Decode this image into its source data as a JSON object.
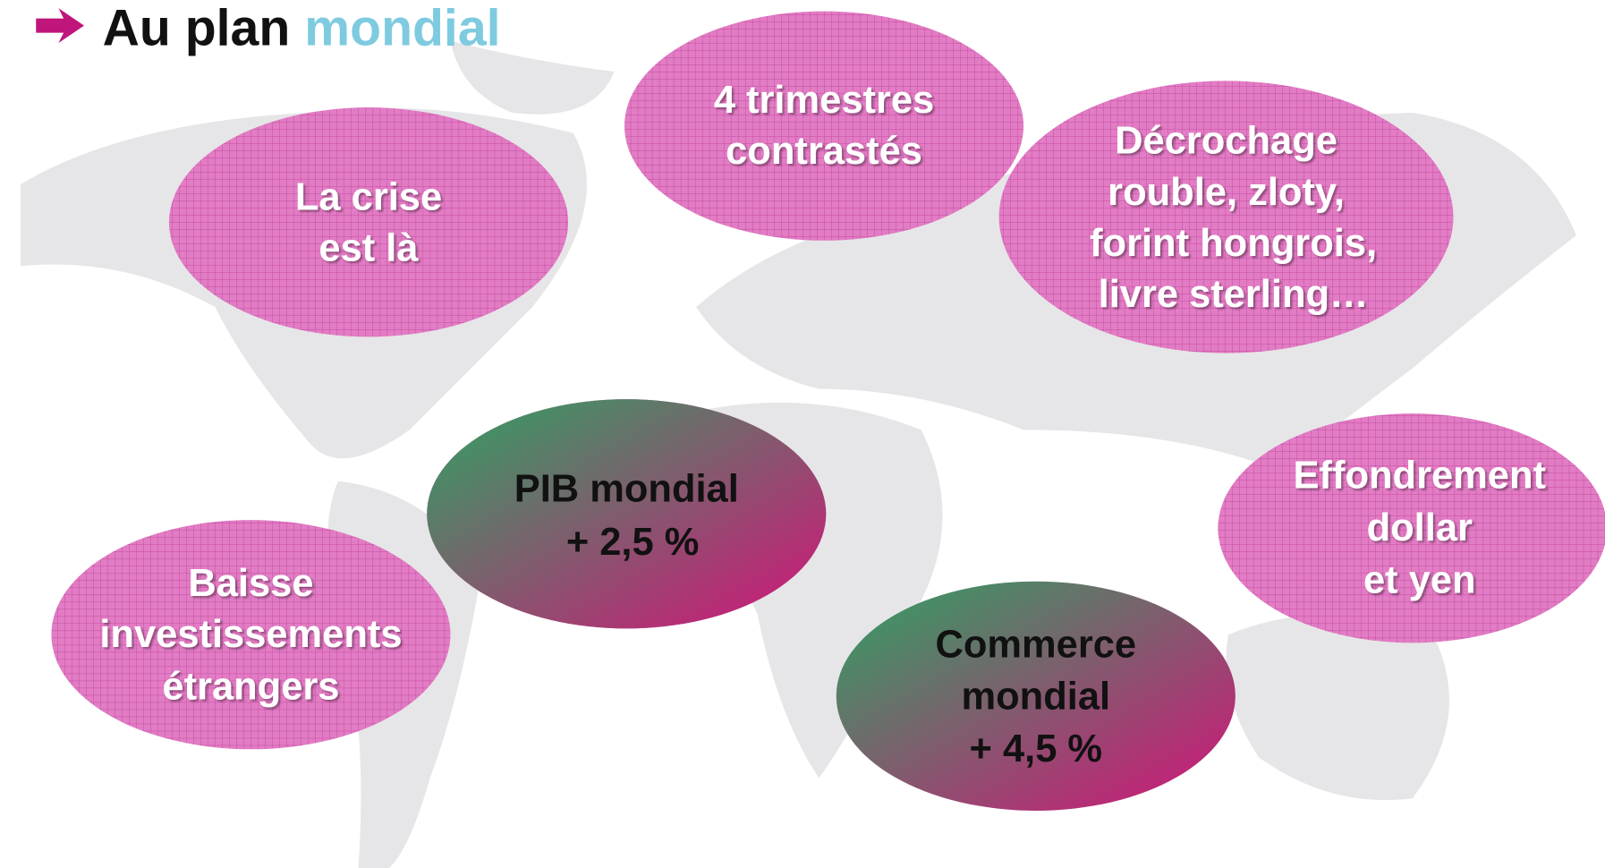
{
  "title": {
    "lead": "Au plan",
    "accent": "mondial"
  },
  "bubbles": [
    {
      "lines": [
        "La crise",
        "est là"
      ]
    },
    {
      "lines": [
        "4 trimestres",
        "contrastés"
      ]
    },
    {
      "lines": [
        "Décrochage",
        "rouble, zloty,",
        "forint hongrois,",
        "livre sterling…"
      ]
    },
    {
      "lines": [
        "Effondrement",
        "dollar",
        "et yen"
      ]
    },
    {
      "lines": [
        "Baisse",
        "investissements",
        "étrangers"
      ]
    },
    {
      "lines": [
        "PIB mondial",
        "+ 2,5 %"
      ]
    },
    {
      "lines": [
        "Commerce",
        "mondial",
        "+ 4,5 %"
      ]
    }
  ]
}
